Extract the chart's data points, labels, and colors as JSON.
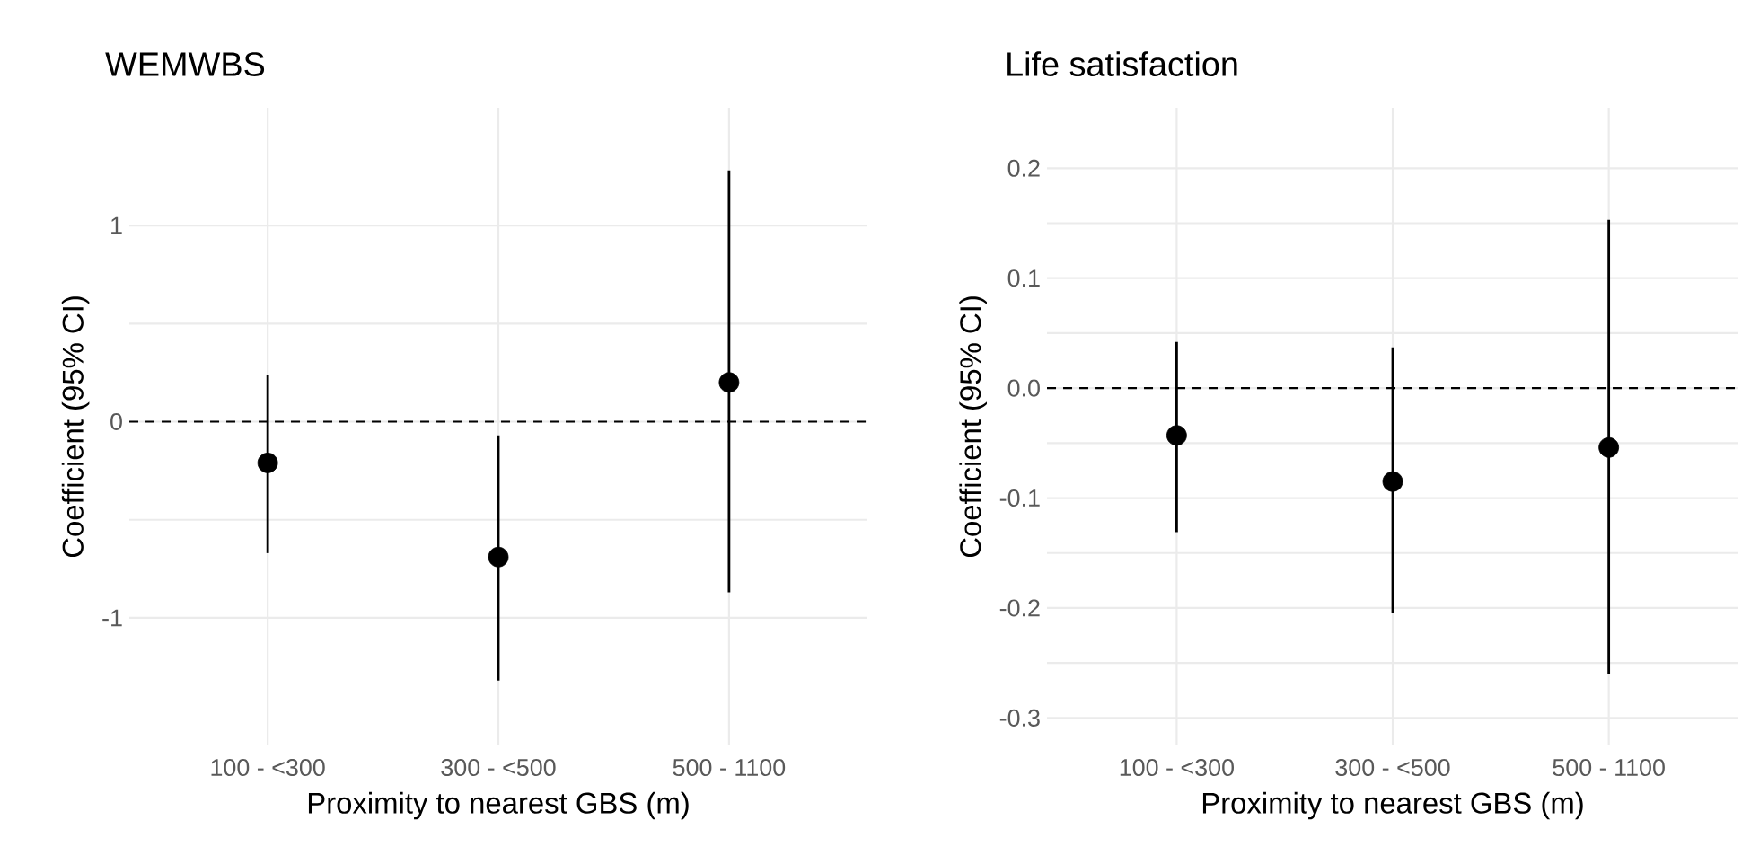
{
  "chart_data": [
    {
      "type": "scatter",
      "title": "WEMWBS",
      "xlabel": "Proximity to nearest GBS (m)",
      "ylabel": "Coefficient (95% CI)",
      "categories": [
        "100 - <300",
        "300 - <500",
        "500 - 1100"
      ],
      "series": [
        {
          "color": "#000000",
          "values": [
            -0.21,
            -0.69,
            0.2
          ],
          "errors": [
            [
              -0.67,
              0.24
            ],
            [
              -1.32,
              -0.07
            ],
            [
              -0.87,
              1.28
            ]
          ]
        }
      ],
      "ylim": [
        -1.65,
        1.6
      ],
      "yticks": [
        -1,
        0,
        1
      ],
      "grid": true,
      "marker": "circle",
      "ref_lines": [
        {
          "axis": "y",
          "value": 0,
          "line_style": "dashed",
          "color": "#000000"
        }
      ]
    },
    {
      "type": "scatter",
      "title": "Life satisfaction",
      "xlabel": "Proximity to nearest GBS (m)",
      "ylabel": "Coefficient (95% CI)",
      "categories": [
        "100 - <300",
        "300 - <500",
        "500 - 1100"
      ],
      "series": [
        {
          "color": "#000000",
          "values": [
            -0.043,
            -0.085,
            -0.054
          ],
          "errors": [
            [
              -0.131,
              0.042
            ],
            [
              -0.205,
              0.037
            ],
            [
              -0.26,
              0.153
            ]
          ]
        }
      ],
      "ylim": [
        -0.325,
        0.255
      ],
      "yticks": [
        -0.3,
        -0.2,
        -0.1,
        {
          "value": 0,
          "label": "0.0"
        },
        0.1,
        0.2
      ],
      "grid": true,
      "marker": "circle",
      "ref_lines": [
        {
          "axis": "y",
          "value": 0,
          "line_style": "dashed",
          "color": "#000000"
        }
      ]
    }
  ]
}
